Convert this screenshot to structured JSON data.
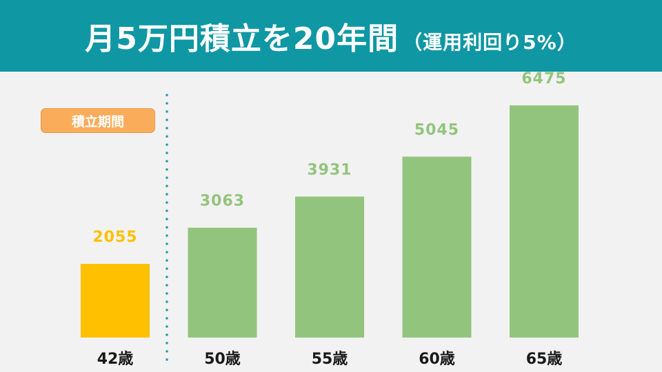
{
  "header": {
    "title": "月5万円積立を20年間",
    "subtitle": "（運用利回り5%）"
  },
  "badge": {
    "label": "積立期間"
  },
  "colors": {
    "header_bg": "#0f97a4",
    "start_bar": "#ffc000",
    "growth_bar": "#93c47d",
    "divider": "#1a9bb0",
    "badge_bg": "#fbac5a"
  },
  "chart_data": {
    "type": "bar",
    "title": "月5万円積立を20年間（運用利回り5%）",
    "categories": [
      "42歳",
      "50歳",
      "55歳",
      "60歳",
      "65歳"
    ],
    "values": [
      2055,
      3063,
      3931,
      5045,
      6475
    ],
    "bar_colors": [
      "#ffc000",
      "#93c47d",
      "#93c47d",
      "#93c47d",
      "#93c47d"
    ],
    "ylim": [
      0,
      7300
    ],
    "grid": false,
    "legend": "none",
    "annotation": "積立期間"
  }
}
